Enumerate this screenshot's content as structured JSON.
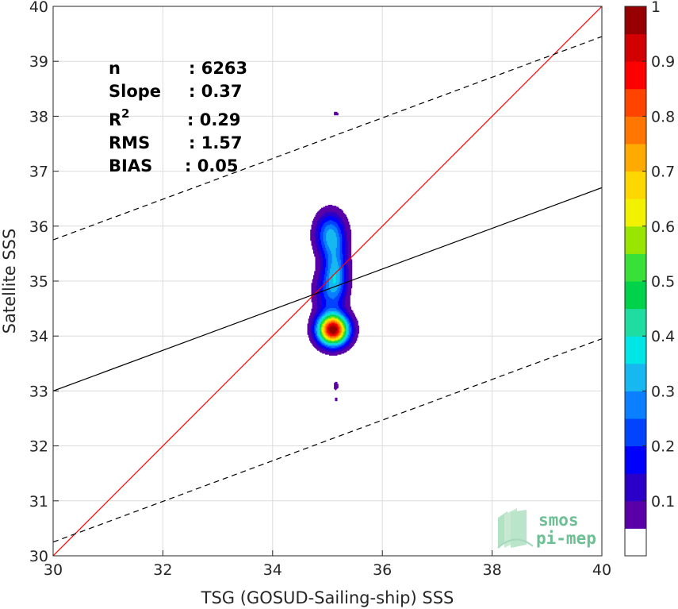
{
  "chart_data": {
    "type": "heatmap",
    "xlabel": "TSG (GOSUD-Sailing-ship) SSS",
    "ylabel": "Satellite SSS",
    "xlim": [
      30,
      40
    ],
    "ylim": [
      30,
      40
    ],
    "xticks": [
      "30",
      "32",
      "34",
      "36",
      "38",
      "40"
    ],
    "yticks": [
      "30",
      "31",
      "32",
      "33",
      "34",
      "35",
      "36",
      "37",
      "38",
      "39",
      "40"
    ],
    "grid": true,
    "stats": {
      "n_label": "n",
      "n_value": ": 6263",
      "slope_label": "Slope",
      "slope_value": ": 0.37",
      "r2_label": "R",
      "r2_sup": "2",
      "r2_value": ": 0.29",
      "rms_label": "RMS",
      "rms_value": ": 1.57",
      "bias_label": "BIAS",
      "bias_value": ": 0.05"
    },
    "lines": [
      {
        "kind": "one-to-one",
        "color": "#ff0000",
        "style": "solid",
        "x": [
          30,
          40
        ],
        "y": [
          30,
          40
        ]
      },
      {
        "kind": "regression",
        "color": "#000000",
        "style": "solid",
        "x": [
          30,
          40
        ],
        "y": [
          33.0,
          36.7
        ]
      },
      {
        "kind": "upper-bound",
        "color": "#000000",
        "style": "dashed",
        "x": [
          30,
          40
        ],
        "y": [
          35.75,
          39.45
        ]
      },
      {
        "kind": "lower-bound",
        "color": "#000000",
        "style": "dashed",
        "x": [
          30,
          40
        ],
        "y": [
          30.25,
          33.95
        ]
      }
    ],
    "density_blobs": [
      {
        "x": 35.15,
        "y": 38.05,
        "sx": 0.06,
        "sy": 0.05,
        "peak": 0.06
      },
      {
        "x": 35.15,
        "y": 33.1,
        "sx": 0.06,
        "sy": 0.12,
        "peak": 0.06
      },
      {
        "x": 35.15,
        "y": 32.85,
        "sx": 0.03,
        "sy": 0.04,
        "peak": 0.055
      },
      {
        "x": 35.1,
        "y": 34.12,
        "sx": 0.19,
        "sy": 0.19,
        "peak": 1.0
      },
      {
        "x": 35.05,
        "y": 35.85,
        "sx": 0.19,
        "sy": 0.28,
        "peak": 0.3
      },
      {
        "x": 35.15,
        "y": 35.15,
        "sx": 0.15,
        "sy": 0.36,
        "peak": 0.28
      },
      {
        "x": 35.0,
        "y": 34.8,
        "sx": 0.2,
        "sy": 0.3,
        "peak": 0.15
      }
    ],
    "colorbar": {
      "ticks": [
        "0.1",
        "0.2",
        "0.3",
        "0.4",
        "0.5",
        "0.6",
        "0.7",
        "0.8",
        "0.9",
        "1"
      ],
      "colors": [
        "#ffffff",
        "#5a00a8",
        "#2a00c8",
        "#0000ff",
        "#0044ff",
        "#0a7fff",
        "#17b8f0",
        "#00e6e6",
        "#1fdca0",
        "#00d24a",
        "#38e038",
        "#98e600",
        "#f2f200",
        "#ffd700",
        "#ffaa00",
        "#ff7700",
        "#ff4400",
        "#ff0000",
        "#d20000",
        "#960000"
      ]
    },
    "logo": {
      "line1": "smos",
      "line2": "pi-mep"
    }
  }
}
